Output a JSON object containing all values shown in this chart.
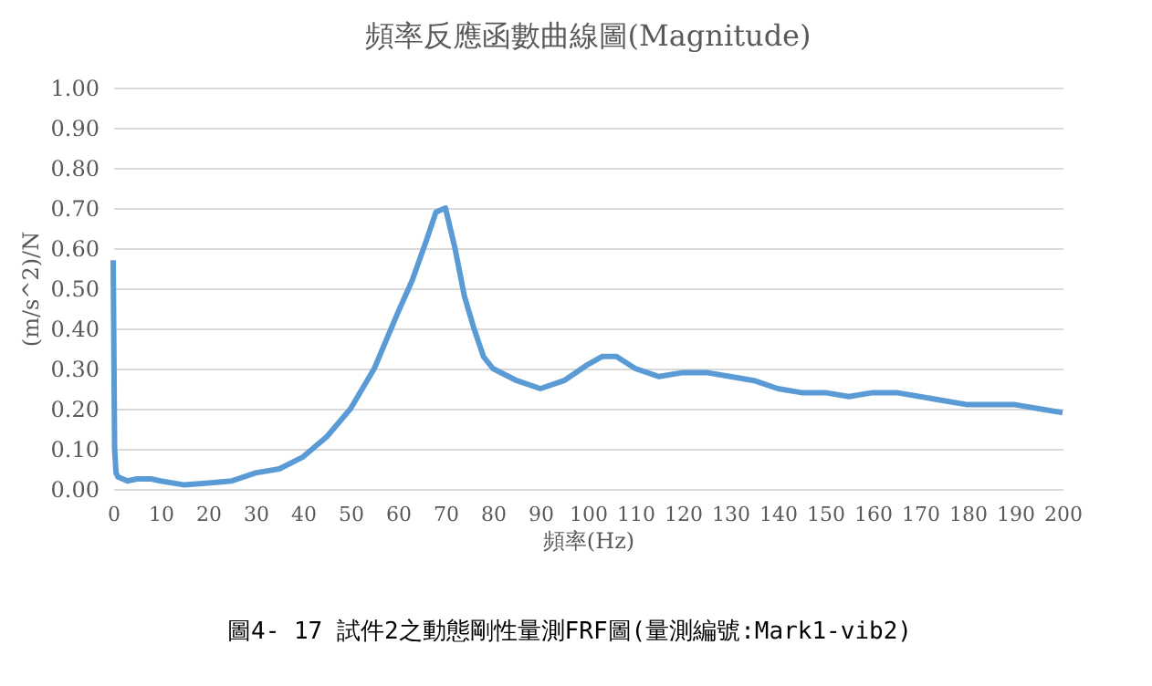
{
  "chart_data": {
    "type": "line",
    "title": "頻率反應函數曲線圖(Magnitude)",
    "xlabel": "頻率(Hz)",
    "ylabel": "(m/s^2)/N",
    "annotations": [
      "圖4- 17 試件2之動態剛性量測FRF圖(量測編號:Mark1-vib2)"
    ],
    "x": [
      0,
      0.3,
      0.6,
      1,
      3,
      5,
      8,
      10,
      15,
      20,
      25,
      30,
      35,
      40,
      45,
      50,
      55,
      60,
      63,
      66,
      68,
      70,
      72,
      74,
      76,
      78,
      80,
      85,
      90,
      95,
      100,
      103,
      106,
      110,
      115,
      120,
      125,
      130,
      135,
      140,
      145,
      150,
      155,
      160,
      165,
      170,
      175,
      180,
      185,
      190,
      195,
      200
    ],
    "series": [
      {
        "color": "#5b9bd5",
        "values": [
          0.57,
          0.1,
          0.04,
          0.03,
          0.02,
          0.025,
          0.025,
          0.02,
          0.01,
          0.015,
          0.02,
          0.04,
          0.05,
          0.08,
          0.13,
          0.2,
          0.3,
          0.44,
          0.52,
          0.62,
          0.69,
          0.7,
          0.6,
          0.48,
          0.4,
          0.33,
          0.3,
          0.27,
          0.25,
          0.27,
          0.31,
          0.33,
          0.33,
          0.3,
          0.28,
          0.29,
          0.29,
          0.28,
          0.27,
          0.25,
          0.24,
          0.24,
          0.23,
          0.24,
          0.24,
          0.23,
          0.22,
          0.21,
          0.21,
          0.21,
          0.2,
          0.19
        ]
      }
    ],
    "xlim": [
      0,
      200
    ],
    "xticks": [
      0,
      10,
      20,
      30,
      40,
      50,
      60,
      70,
      80,
      90,
      100,
      110,
      120,
      130,
      140,
      150,
      160,
      170,
      180,
      190,
      200
    ],
    "ylim": [
      0,
      1
    ],
    "yticks": [
      {
        "value": 0,
        "label": "0.00"
      },
      {
        "value": 0.1,
        "label": "0.10"
      },
      {
        "value": 0.2,
        "label": "0.20"
      },
      {
        "value": 0.3,
        "label": "0.30"
      },
      {
        "value": 0.4,
        "label": "0.40"
      },
      {
        "value": 0.5,
        "label": "0.50"
      },
      {
        "value": 0.6,
        "label": "0.60"
      },
      {
        "value": 0.7,
        "label": "0.70"
      },
      {
        "value": 0.8,
        "label": "0.80"
      },
      {
        "value": 0.9,
        "label": "0.90"
      },
      {
        "value": 1,
        "label": "1.00"
      }
    ],
    "grid": "y",
    "legend": false,
    "line_style": "solid"
  }
}
